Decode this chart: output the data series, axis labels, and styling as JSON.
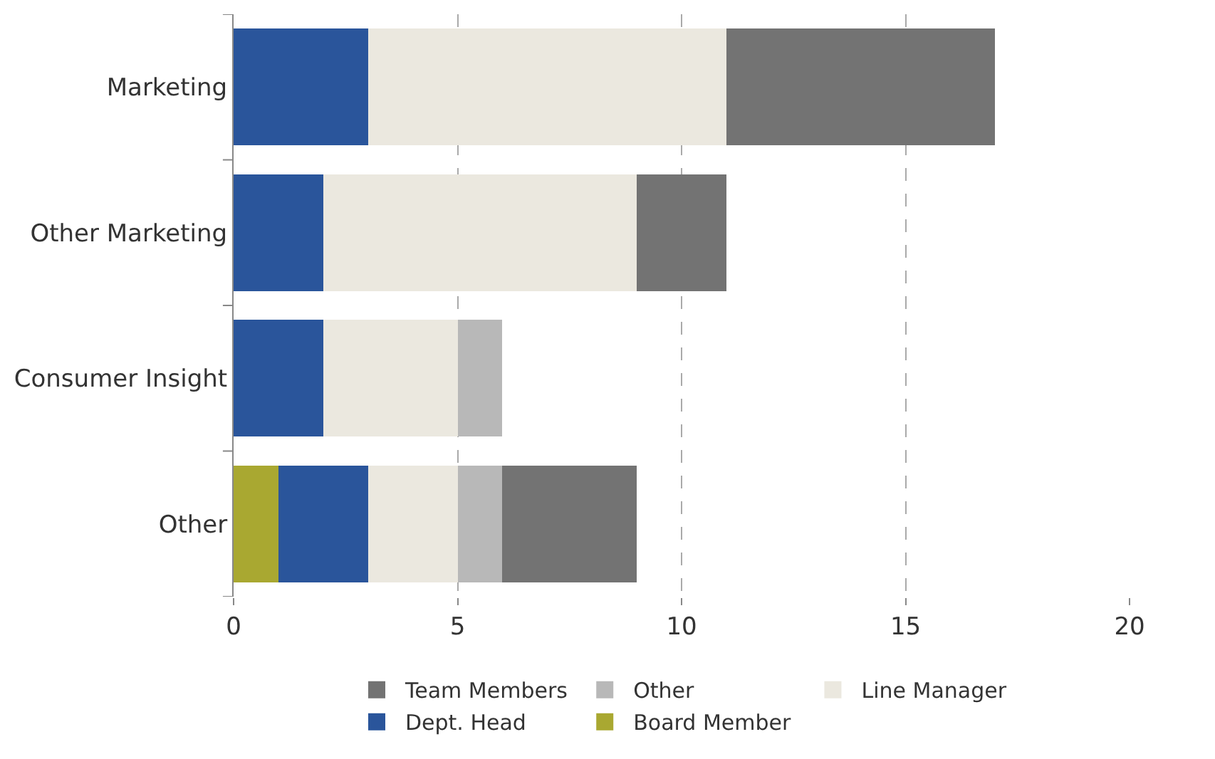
{
  "chart_data": {
    "type": "bar",
    "orientation": "horizontal",
    "stacked": true,
    "categories": [
      "Marketing",
      "Other Marketing",
      "Consumer Insight",
      "Other"
    ],
    "series": [
      {
        "name": "Board Member",
        "color": "#a9a831",
        "values": [
          null,
          null,
          null,
          1
        ]
      },
      {
        "name": "Dept. Head",
        "color": "#2a559b",
        "values": [
          3,
          2,
          2,
          2
        ]
      },
      {
        "name": "Line Manager",
        "color": "#ebe8df",
        "values": [
          8,
          7,
          3,
          2
        ]
      },
      {
        "name": "Other",
        "color": "#b8b8b8",
        "values": [
          null,
          null,
          1,
          1
        ]
      },
      {
        "name": "Team Members",
        "color": "#737373",
        "values": [
          6,
          2,
          null,
          3
        ]
      }
    ],
    "xlim": [
      0,
      20
    ],
    "xticks": [
      0,
      5,
      10,
      15,
      20
    ],
    "grid": "x",
    "legend": "bottom"
  }
}
